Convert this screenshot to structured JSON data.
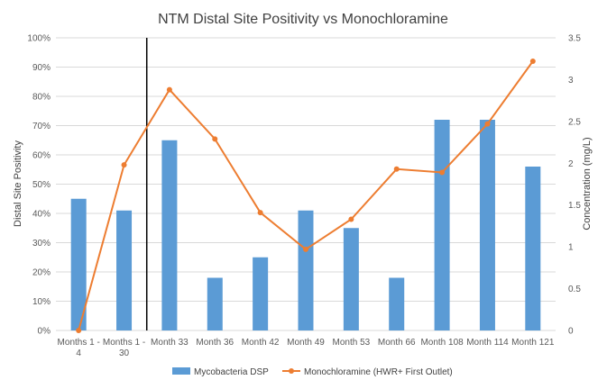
{
  "chart_data": {
    "type": "bar+line",
    "title": "NTM Distal Site Positivity vs Monochloramine",
    "categories": [
      [
        "Months 1 -",
        "4"
      ],
      [
        "Months 1 -",
        "30"
      ],
      [
        "Month 33"
      ],
      [
        "Month 36"
      ],
      [
        "Month 42"
      ],
      [
        "Month 49"
      ],
      [
        "Month 53"
      ],
      [
        "Month 66"
      ],
      [
        "Month 108"
      ],
      [
        "Month 114"
      ],
      [
        "Month 121"
      ]
    ],
    "series": [
      {
        "name": "Mycobacteria DSP",
        "type": "bar",
        "axis": "left",
        "values": [
          0.45,
          0.41,
          0.65,
          0.18,
          0.25,
          0.41,
          0.35,
          0.18,
          0.72,
          0.72,
          0.56
        ]
      },
      {
        "name": "Monochloramine (HWR+ First Outlet)",
        "type": "line",
        "axis": "right",
        "values": [
          0.0,
          1.98,
          2.88,
          2.29,
          1.41,
          0.97,
          1.33,
          1.93,
          1.89,
          2.47,
          3.22
        ]
      }
    ],
    "ylabel": "Distal Site Positivity",
    "ylabel_right": "Concentration (mg/L)",
    "ylim": [
      0,
      1
    ],
    "yticks": [
      "0%",
      "10%",
      "20%",
      "30%",
      "40%",
      "50%",
      "60%",
      "70%",
      "80%",
      "90%",
      "100%"
    ],
    "ylim_right": [
      0,
      3.5
    ],
    "yticks_right": [
      "0",
      "0.5",
      "1",
      "1.5",
      "2",
      "2.5",
      "3",
      "3.5"
    ],
    "divider_after_category": 1,
    "legend_position": "bottom",
    "colors": {
      "bar": "#5b9bd5",
      "line": "#ed7d31",
      "grid": "#d9d9d9",
      "divider": "#000000"
    }
  }
}
